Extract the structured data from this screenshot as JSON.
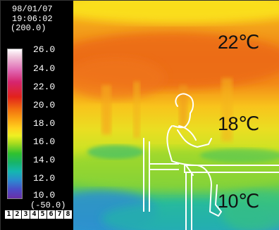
{
  "header": {
    "date": "98/01/07",
    "time": "19:06:02",
    "range": "(200.0)"
  },
  "scale": {
    "ticks": [
      "26.0",
      "24.0",
      "22.0",
      "20.0",
      "18.0",
      "16.0",
      "14.0",
      "12.0",
      "10.0"
    ],
    "low": "(-50.0)",
    "colors": {
      "top": "#ffffff",
      "pink": "#e06ab4",
      "red": "#e2221b",
      "orange": "#f26d10",
      "yellow": "#ffd21e",
      "green": "#2fc12f",
      "cyan": "#14b7b0",
      "blue": "#2c8ad0",
      "purple": "#6a2fa8"
    }
  },
  "footer": {
    "digits": [
      "1",
      "2",
      "3",
      "4",
      "5",
      "6",
      "7",
      "8"
    ]
  },
  "annotations": {
    "top": "22℃",
    "middle": "18℃",
    "bottom": "10℃"
  }
}
